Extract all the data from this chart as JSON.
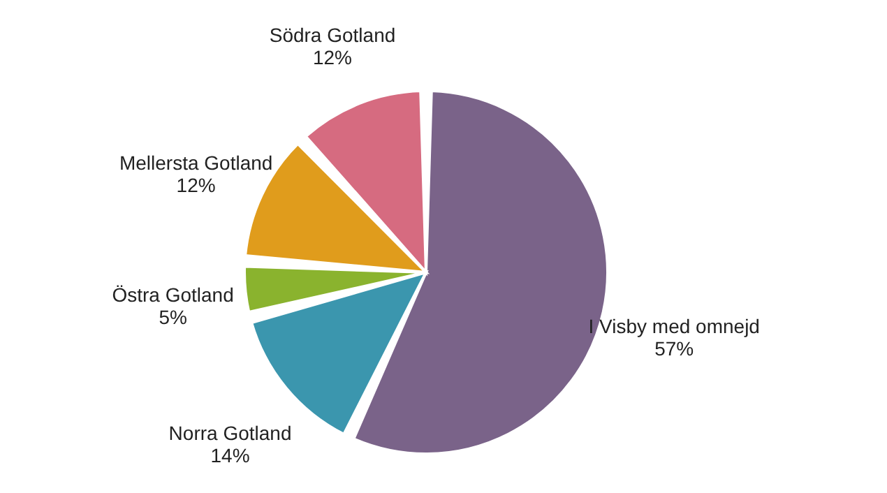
{
  "chart_data": {
    "type": "pie",
    "categories": [
      "I Visby med omnejd",
      "Norra Gotland",
      "Östra Gotland",
      "Mellersta Gotland",
      "Södra Gotland"
    ],
    "values": [
      57,
      14,
      5,
      12,
      12
    ],
    "value_labels": [
      "57%",
      "14%",
      "5%",
      "12%",
      "12%"
    ],
    "colors": [
      "#7a6389",
      "#3b96ae",
      "#8ab32e",
      "#e09c1c",
      "#d66b80"
    ]
  }
}
